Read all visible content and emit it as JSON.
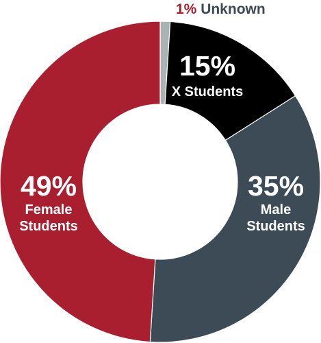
{
  "chart_data": {
    "type": "pie",
    "donut": true,
    "slices": [
      {
        "label_pct": "1%",
        "label_name": "Unknown",
        "value": 1,
        "color": "#a8b4b4",
        "text_color": "#3d4a55",
        "pct_color": "#a91f2f"
      },
      {
        "label_pct": "15%",
        "label_name": "X Students",
        "value": 15,
        "color": "#000000",
        "text_color": "#ffffff"
      },
      {
        "label_pct": "35%",
        "label_name": "Male\nStudents",
        "value": 35,
        "color": "#3c4b55",
        "text_color": "#ffffff"
      },
      {
        "label_pct": "49%",
        "label_name": "Female\nStudents",
        "value": 49,
        "color": "#a91f2f",
        "text_color": "#ffffff"
      }
    ]
  }
}
